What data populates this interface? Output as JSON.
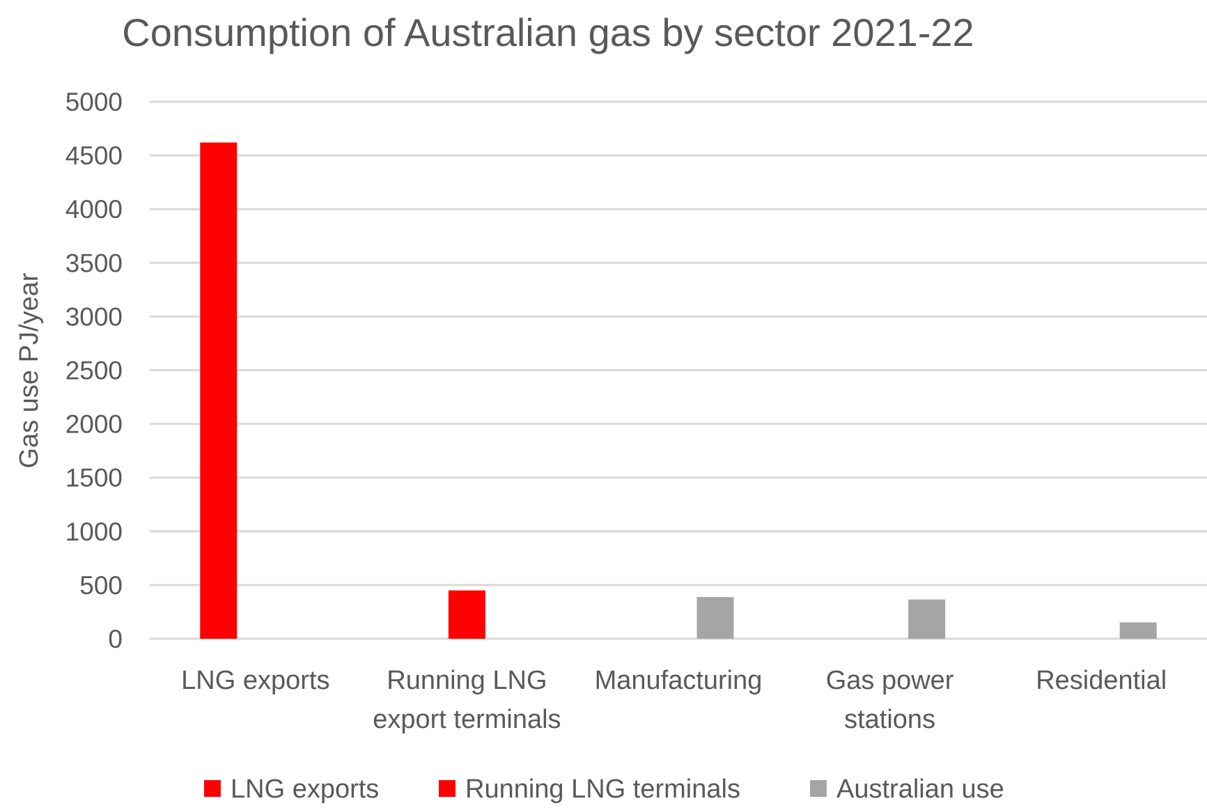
{
  "chart_data": {
    "type": "bar",
    "title": "Consumption of Australian gas by sector 2021-22",
    "xlabel": "",
    "ylabel": "Gas use PJ/year",
    "ylim": [
      0,
      5000
    ],
    "yticks": [
      0,
      500,
      1000,
      1500,
      2000,
      2500,
      3000,
      3500,
      4000,
      4500,
      5000
    ],
    "grid": true,
    "legend_position": "bottom",
    "categories": [
      [
        "LNG exports"
      ],
      [
        "Running LNG",
        "export terminals"
      ],
      [
        "Manufacturing"
      ],
      [
        "Gas power",
        "stations"
      ],
      [
        "Residential"
      ]
    ],
    "series": [
      {
        "name": "LNG exports",
        "color": "#ff0000",
        "values": [
          4620,
          null,
          null,
          null,
          null
        ]
      },
      {
        "name": "Running LNG terminals",
        "color": "#ff0000",
        "values": [
          null,
          450,
          null,
          null,
          null
        ]
      },
      {
        "name": "Australian use",
        "color": "#a5a5a5",
        "values": [
          null,
          null,
          388,
          365,
          152
        ]
      }
    ]
  }
}
